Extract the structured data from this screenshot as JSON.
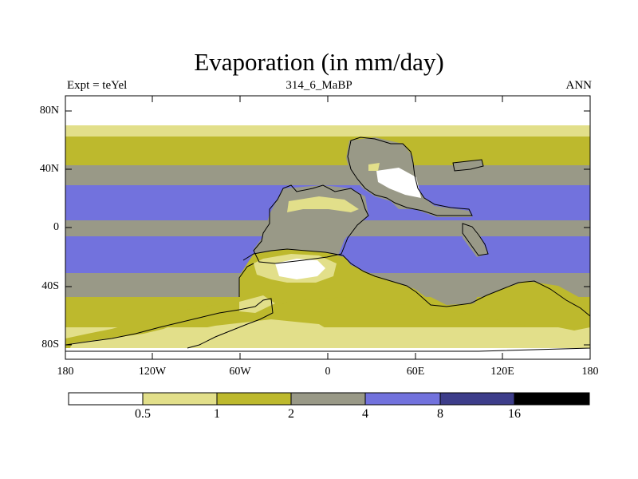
{
  "title": "Evaporation (in mm/day)",
  "subtitle_left": "Expt = teYel",
  "subtitle_center": "314_6_MaBP",
  "subtitle_right": "ANN",
  "y_ticks": [
    "80N",
    "40N",
    "0",
    "40S",
    "80S"
  ],
  "x_ticks": [
    "180",
    "120W",
    "60W",
    "0",
    "60E",
    "120E",
    "180"
  ],
  "colorbar": {
    "labels": [
      "0.5",
      "1",
      "2",
      "4",
      "8",
      "16"
    ],
    "colors": [
      "#ffffff",
      "#e2df8a",
      "#bdb92d",
      "#999987",
      "#7272dd",
      "#3d3d8a",
      "#000000"
    ]
  },
  "colors": {
    "white": "#ffffff",
    "light_yellow": "#e2df8a",
    "olive": "#bdb92d",
    "gray": "#999987",
    "blue": "#7272dd",
    "outline": "#000000"
  }
}
